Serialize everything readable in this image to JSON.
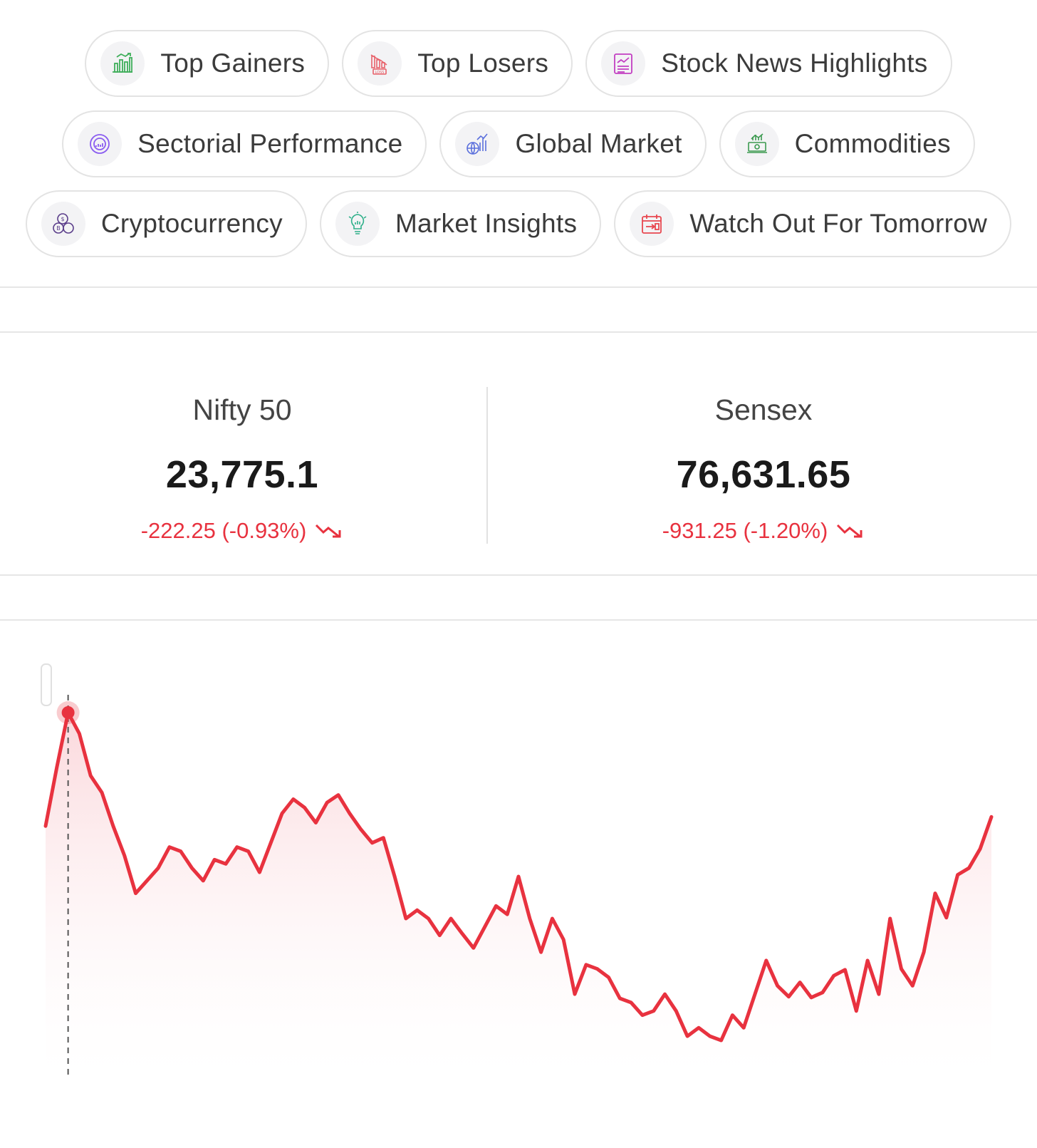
{
  "chips": [
    [
      {
        "label": "Top Gainers",
        "icon": "gainers-chart-icon",
        "color": "#3fae5a"
      },
      {
        "label": "Top Losers",
        "icon": "losers-chart-icon",
        "color": "#e8626b"
      },
      {
        "label": "Stock News Highlights",
        "icon": "news-icon",
        "color": "#c23fc2"
      }
    ],
    [
      {
        "label": "Sectorial Performance",
        "icon": "sector-gauge-icon",
        "color": "#8a5cf0"
      },
      {
        "label": "Global Market",
        "icon": "globe-chart-icon",
        "color": "#5a6fdc"
      },
      {
        "label": "Commodities",
        "icon": "money-stack-icon",
        "color": "#3c9a50"
      }
    ],
    [
      {
        "label": "Cryptocurrency",
        "icon": "crypto-coins-icon",
        "color": "#5a3d8a"
      },
      {
        "label": "Market Insights",
        "icon": "lightbulb-chart-icon",
        "color": "#2fb08a"
      },
      {
        "label": "Watch Out For Tomorrow",
        "icon": "calendar-icon",
        "color": "#e8474f"
      }
    ]
  ],
  "indices": [
    {
      "name": "Nifty 50",
      "value": "23,775.1",
      "change": "-222.25 (-0.93%)"
    },
    {
      "name": "Sensex",
      "value": "76,631.65",
      "change": "-931.25 (-1.20%)"
    }
  ],
  "colors": {
    "down": "#e8323f",
    "chart_line": "#e8323f"
  },
  "chart_data": {
    "type": "area",
    "title": "",
    "xlabel": "",
    "ylabel": "",
    "grid": false,
    "highlight_index": 2,
    "values": [
      23810,
      23880,
      23945,
      23920,
      23870,
      23850,
      23810,
      23775,
      23730,
      23745,
      23760,
      23785,
      23780,
      23760,
      23745,
      23770,
      23765,
      23785,
      23780,
      23755,
      23790,
      23825,
      23842,
      23832,
      23814,
      23838,
      23847,
      23825,
      23806,
      23790,
      23796,
      23750,
      23700,
      23710,
      23700,
      23680,
      23700,
      23682,
      23665,
      23690,
      23715,
      23705,
      23750,
      23700,
      23660,
      23700,
      23675,
      23610,
      23645,
      23640,
      23630,
      23605,
      23600,
      23585,
      23590,
      23610,
      23590,
      23560,
      23570,
      23560,
      23555,
      23585,
      23570,
      23610,
      23650,
      23620,
      23607,
      23624,
      23606,
      23612,
      23632,
      23639,
      23590,
      23650,
      23610,
      23700,
      23640,
      23620,
      23660,
      23730,
      23701,
      23752,
      23760,
      23783,
      23821
    ]
  }
}
